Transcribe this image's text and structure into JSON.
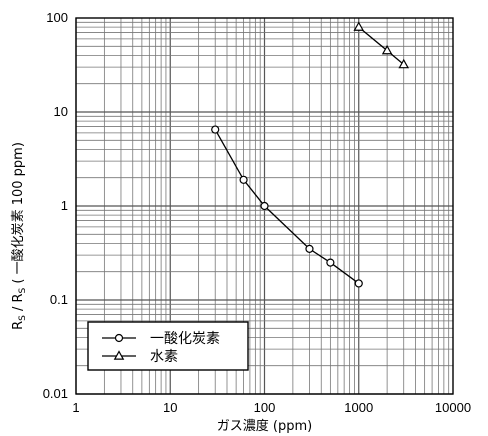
{
  "chart_data": {
    "type": "line",
    "x_scale": "log",
    "y_scale": "log",
    "xlim": [
      1,
      10000
    ],
    "ylim": [
      0.01,
      100
    ],
    "grid": true,
    "xlabel": "ガス濃度 (ppm)",
    "ylabel": {
      "prefix": "R",
      "sub1": "S",
      "middle": " / R",
      "sub2": "S",
      "suffix": " ( 一酸化炭素 100 ppm)"
    },
    "x_ticks": [
      {
        "value": 1,
        "label": "1"
      },
      {
        "value": 10,
        "label": "10"
      },
      {
        "value": 100,
        "label": "100"
      },
      {
        "value": 1000,
        "label": "1000"
      },
      {
        "value": 10000,
        "label": "10000"
      }
    ],
    "y_ticks": [
      {
        "value": 0.01,
        "label": "0.01"
      },
      {
        "value": 0.1,
        "label": "0.1"
      },
      {
        "value": 1,
        "label": "1"
      },
      {
        "value": 10,
        "label": "10"
      },
      {
        "value": 100,
        "label": "100"
      }
    ],
    "legend_position": "bottom-left",
    "series": [
      {
        "name": "一酸化炭素",
        "marker": "circle",
        "points": [
          {
            "x": 30,
            "y": 6.5
          },
          {
            "x": 60,
            "y": 1.9
          },
          {
            "x": 100,
            "y": 1.0
          },
          {
            "x": 300,
            "y": 0.35
          },
          {
            "x": 500,
            "y": 0.25
          },
          {
            "x": 1000,
            "y": 0.15
          }
        ]
      },
      {
        "name": "水素",
        "marker": "triangle",
        "points": [
          {
            "x": 1000,
            "y": 80
          },
          {
            "x": 2000,
            "y": 45
          },
          {
            "x": 3000,
            "y": 32
          }
        ]
      }
    ]
  }
}
